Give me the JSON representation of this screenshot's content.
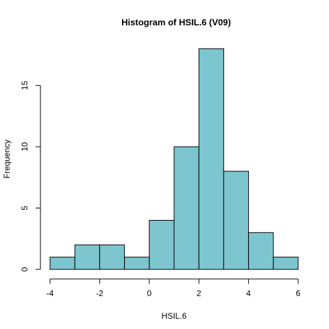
{
  "chart_data": {
    "type": "bar",
    "title": "Histogram of HSIL.6 (V09)",
    "xlabel": "HSIL.6",
    "ylabel": "Frequency",
    "bin_edges": [
      -4,
      -3,
      -2,
      -1,
      0,
      1,
      2,
      3,
      4,
      5,
      6
    ],
    "values": [
      1,
      2,
      2,
      1,
      4,
      10,
      18,
      8,
      3,
      1
    ],
    "xlim": [
      -4,
      6
    ],
    "ylim": [
      0,
      18
    ],
    "x_ticks": [
      -4,
      -2,
      0,
      2,
      4,
      6
    ],
    "x_tick_labels": [
      "-4",
      "-2",
      "0",
      "2",
      "4",
      "6"
    ],
    "y_ticks": [
      0,
      5,
      10,
      15
    ],
    "y_tick_labels": [
      "0",
      "5",
      "10",
      "15"
    ],
    "bar_color": "#7DC5CF",
    "grid": false
  }
}
